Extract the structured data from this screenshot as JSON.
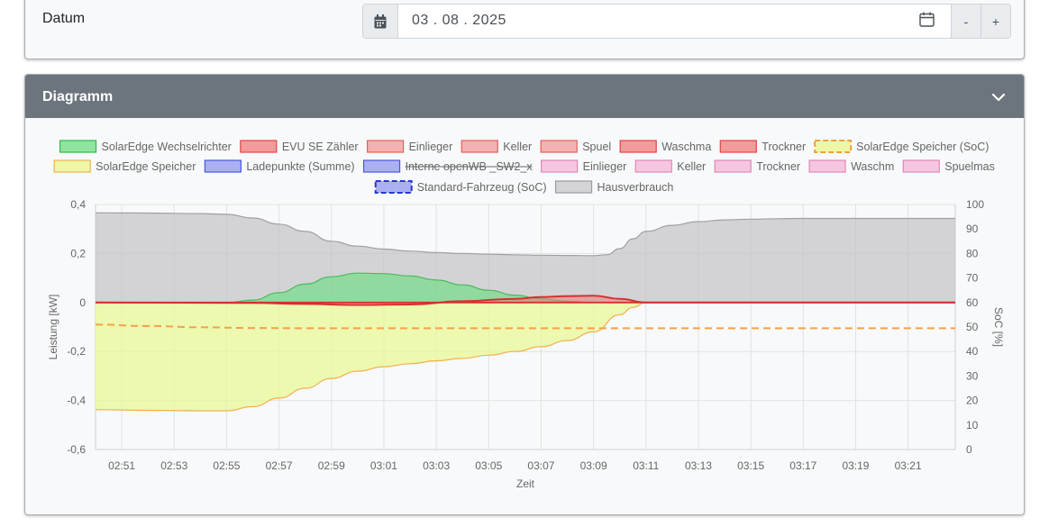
{
  "date_row": {
    "label": "Datum",
    "value": "03 . 08 . 2025",
    "minus_label": "-",
    "plus_label": "+",
    "icons": [
      "calendar-filled-icon",
      "calendar-outline-icon"
    ]
  },
  "chart_card": {
    "title": "Diagramm",
    "collapse_icon": "chevron-down-icon",
    "header_color": "#6c757d"
  },
  "legend": [
    {
      "label": "SolarEdge Wechselrichter",
      "fill": "#90e4a0",
      "stroke": "#33b74c",
      "dashed": false,
      "struck": false
    },
    {
      "label": "EVU SE Zähler",
      "fill": "#f29b9b",
      "stroke": "#e04646",
      "dashed": false,
      "struck": false
    },
    {
      "label": "Einlieger",
      "fill": "#f4b1b1",
      "stroke": "#e06060",
      "dashed": false,
      "struck": false
    },
    {
      "label": "Keller",
      "fill": "#f4b1b1",
      "stroke": "#e06060",
      "dashed": false,
      "struck": false
    },
    {
      "label": "Spuel",
      "fill": "#f4b1b1",
      "stroke": "#e06060",
      "dashed": false,
      "struck": false
    },
    {
      "label": "Waschma",
      "fill": "#f29b9b",
      "stroke": "#e04646",
      "dashed": false,
      "struck": false
    },
    {
      "label": "Trockner",
      "fill": "#f29b9b",
      "stroke": "#e04646",
      "dashed": false,
      "struck": false
    },
    {
      "label": "SolarEdge Speicher (SoC)",
      "fill": "#eef7a8",
      "stroke": "#f0a040",
      "dashed": true,
      "struck": false
    },
    {
      "label": "SolarEdge Speicher",
      "fill": "#eef7a8",
      "stroke": "#f0b050",
      "dashed": false,
      "struck": false
    },
    {
      "label": "Ladepunkte (Summe)",
      "fill": "#aab0f2",
      "stroke": "#4a56e0",
      "dashed": false,
      "struck": false
    },
    {
      "label": "Interne openWB _SW2_x",
      "fill": "#aab0f2",
      "stroke": "#4a56e0",
      "dashed": false,
      "struck": true
    },
    {
      "label": "Einlieger",
      "fill": "#f5c6e0",
      "stroke": "#e088b8",
      "dashed": false,
      "struck": false
    },
    {
      "label": "Keller",
      "fill": "#f5c6e0",
      "stroke": "#e088b8",
      "dashed": false,
      "struck": false
    },
    {
      "label": "Trockner",
      "fill": "#f5c6e0",
      "stroke": "#e088b8",
      "dashed": false,
      "struck": false
    },
    {
      "label": "Waschm",
      "fill": "#f5c6e0",
      "stroke": "#e088b8",
      "dashed": false,
      "struck": false
    },
    {
      "label": "Spuelmas",
      "fill": "#f5c6e0",
      "stroke": "#e088b8",
      "dashed": false,
      "struck": false
    },
    {
      "label": "Standard-Fahrzeug (SoC)",
      "fill": "#aab0f2",
      "stroke": "#2a36d0",
      "dashed": true,
      "struck": false
    },
    {
      "label": "Hausverbrauch",
      "fill": "#d4d4d6",
      "stroke": "#9a9a9c",
      "dashed": false,
      "struck": false
    }
  ],
  "chart_data": {
    "type": "area",
    "xlabel": "Zeit",
    "ylabel": "Leistung [kW]",
    "y2label": "SoC [%]",
    "ylim": [
      -0.6,
      0.4
    ],
    "y2lim": [
      0,
      100
    ],
    "y_ticks": [
      "0,4",
      "0,2",
      "0",
      "-0,2",
      "-0,4",
      "-0,6"
    ],
    "y2_ticks": [
      "100",
      "90",
      "80",
      "70",
      "60",
      "50",
      "40",
      "30",
      "20",
      "10",
      "0"
    ],
    "x_ticks": [
      "02:51",
      "02:53",
      "02:55",
      "02:57",
      "02:59",
      "03:01",
      "03:03",
      "03:05",
      "03:07",
      "03:09",
      "03:11",
      "03:13",
      "03:15",
      "03:17",
      "03:19",
      "03:21"
    ],
    "x_range_minutes": [
      170.0,
      202.8
    ],
    "grid": true,
    "series": [
      {
        "name": "Hausverbrauch",
        "x": [
          170.0,
          172,
          174,
          175,
          176,
          177,
          178,
          179,
          180,
          181,
          182,
          183,
          184,
          185,
          186,
          187,
          188,
          189,
          189.5,
          190,
          190.5,
          191,
          192,
          193,
          194,
          195,
          196,
          197,
          198,
          200,
          202.8
        ],
        "y": [
          0.366,
          0.365,
          0.363,
          0.36,
          0.345,
          0.32,
          0.29,
          0.25,
          0.23,
          0.218,
          0.21,
          0.204,
          0.2,
          0.197,
          0.195,
          0.193,
          0.192,
          0.191,
          0.195,
          0.22,
          0.26,
          0.29,
          0.315,
          0.33,
          0.337,
          0.34,
          0.342,
          0.343,
          0.343,
          0.343,
          0.343
        ]
      },
      {
        "name": "SolarEdge Wechselrichter",
        "x": [
          170.0,
          175,
          176,
          177,
          178,
          179,
          180,
          181,
          182,
          183,
          184,
          185,
          186,
          187,
          188,
          189,
          190,
          202.8
        ],
        "y": [
          0,
          0,
          0.01,
          0.04,
          0.075,
          0.105,
          0.12,
          0.118,
          0.108,
          0.092,
          0.072,
          0.05,
          0.03,
          0.015,
          0.005,
          0.0,
          0.0,
          0
        ]
      },
      {
        "name": "EVU SE Zähler",
        "x": [
          170.0,
          176,
          178,
          180,
          182,
          184,
          186,
          187,
          188,
          189,
          190,
          191,
          202.8
        ],
        "y": [
          0,
          -0.002,
          -0.006,
          -0.01,
          -0.008,
          0.005,
          0.015,
          0.022,
          0.026,
          0.028,
          0.015,
          0.0,
          0
        ]
      },
      {
        "name": "SolarEdge Speicher",
        "x": [
          170.0,
          172,
          174,
          175,
          176,
          177,
          178,
          179,
          180,
          181,
          182,
          183,
          184,
          185,
          186,
          187,
          188,
          189,
          190,
          190.5,
          191,
          202.8
        ],
        "y": [
          -0.437,
          -0.44,
          -0.442,
          -0.442,
          -0.425,
          -0.39,
          -0.35,
          -0.31,
          -0.28,
          -0.262,
          -0.25,
          -0.238,
          -0.228,
          -0.215,
          -0.2,
          -0.18,
          -0.155,
          -0.12,
          -0.05,
          -0.02,
          0.0,
          0
        ]
      },
      {
        "name": "SolarEdge Speicher (SoC)",
        "axis": "y2",
        "x": [
          170.0,
          172,
          174,
          176,
          178,
          180,
          190,
          202.8
        ],
        "y": [
          51,
          50.4,
          49.9,
          49.6,
          49.5,
          49.5,
          49.5,
          49.5
        ]
      }
    ]
  }
}
